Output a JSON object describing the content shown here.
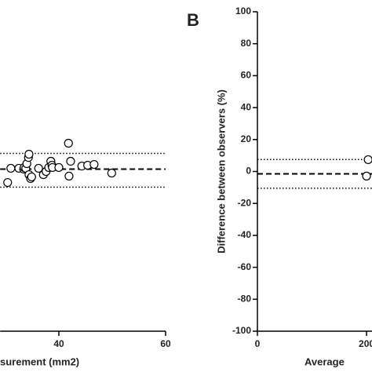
{
  "chart_data": [
    {
      "type": "scatter",
      "x_label": "surement (mm2)",
      "xlim": [
        29,
        60
      ],
      "ylim": [
        -100,
        100
      ],
      "xticks": [
        40,
        60
      ],
      "x": [
        30.4,
        31.0,
        32.5,
        33.4,
        33.5,
        33.8,
        34.0,
        34.3,
        34.4,
        34.4,
        34.7,
        34.9,
        36.2,
        37.1,
        37.6,
        38.1,
        38.5,
        38.7,
        38.8,
        40.0,
        41.8,
        41.9,
        42.2,
        44.3,
        45.4,
        46.6,
        49.9
      ],
      "series": [
        {
          "values": [
            -6.9,
            2.0,
            2.0,
            1.5,
            2.5,
            2.0,
            4.9,
            8.8,
            10.8,
            -2.0,
            -4.4,
            -3.4,
            2.0,
            -2.0,
            0,
            2.5,
            6.4,
            3.9,
            2.5,
            2.5,
            17.7,
            -2.9,
            6.4,
            3.4,
            3.9,
            4.4,
            -1.0
          ],
          "color": "#000000"
        }
      ],
      "hlines": [
        {
          "value": 1.5,
          "style": "dashed"
        },
        {
          "value": 11.3,
          "style": "dotted"
        },
        {
          "value": -9.8,
          "style": "dotted"
        }
      ]
    },
    {
      "type": "scatter",
      "panel_label": "B",
      "x_label": "Average",
      "y_label": "Difference between observers (%)",
      "xlim": [
        0,
        210
      ],
      "ylim": [
        -100,
        100
      ],
      "xticks": [
        0,
        200
      ],
      "yticks": [
        -100,
        -80,
        -60,
        -40,
        -20,
        0,
        20,
        40,
        60,
        80,
        100
      ],
      "x": [
        203,
        200
      ],
      "series": [
        {
          "values": [
            7.4,
            -2.9
          ],
          "color": "#000000"
        }
      ],
      "hlines": [
        {
          "value": -1.5,
          "style": "dashed"
        },
        {
          "value": 7.5,
          "style": "dotted"
        },
        {
          "value": -10.5,
          "style": "dotted"
        }
      ]
    }
  ]
}
